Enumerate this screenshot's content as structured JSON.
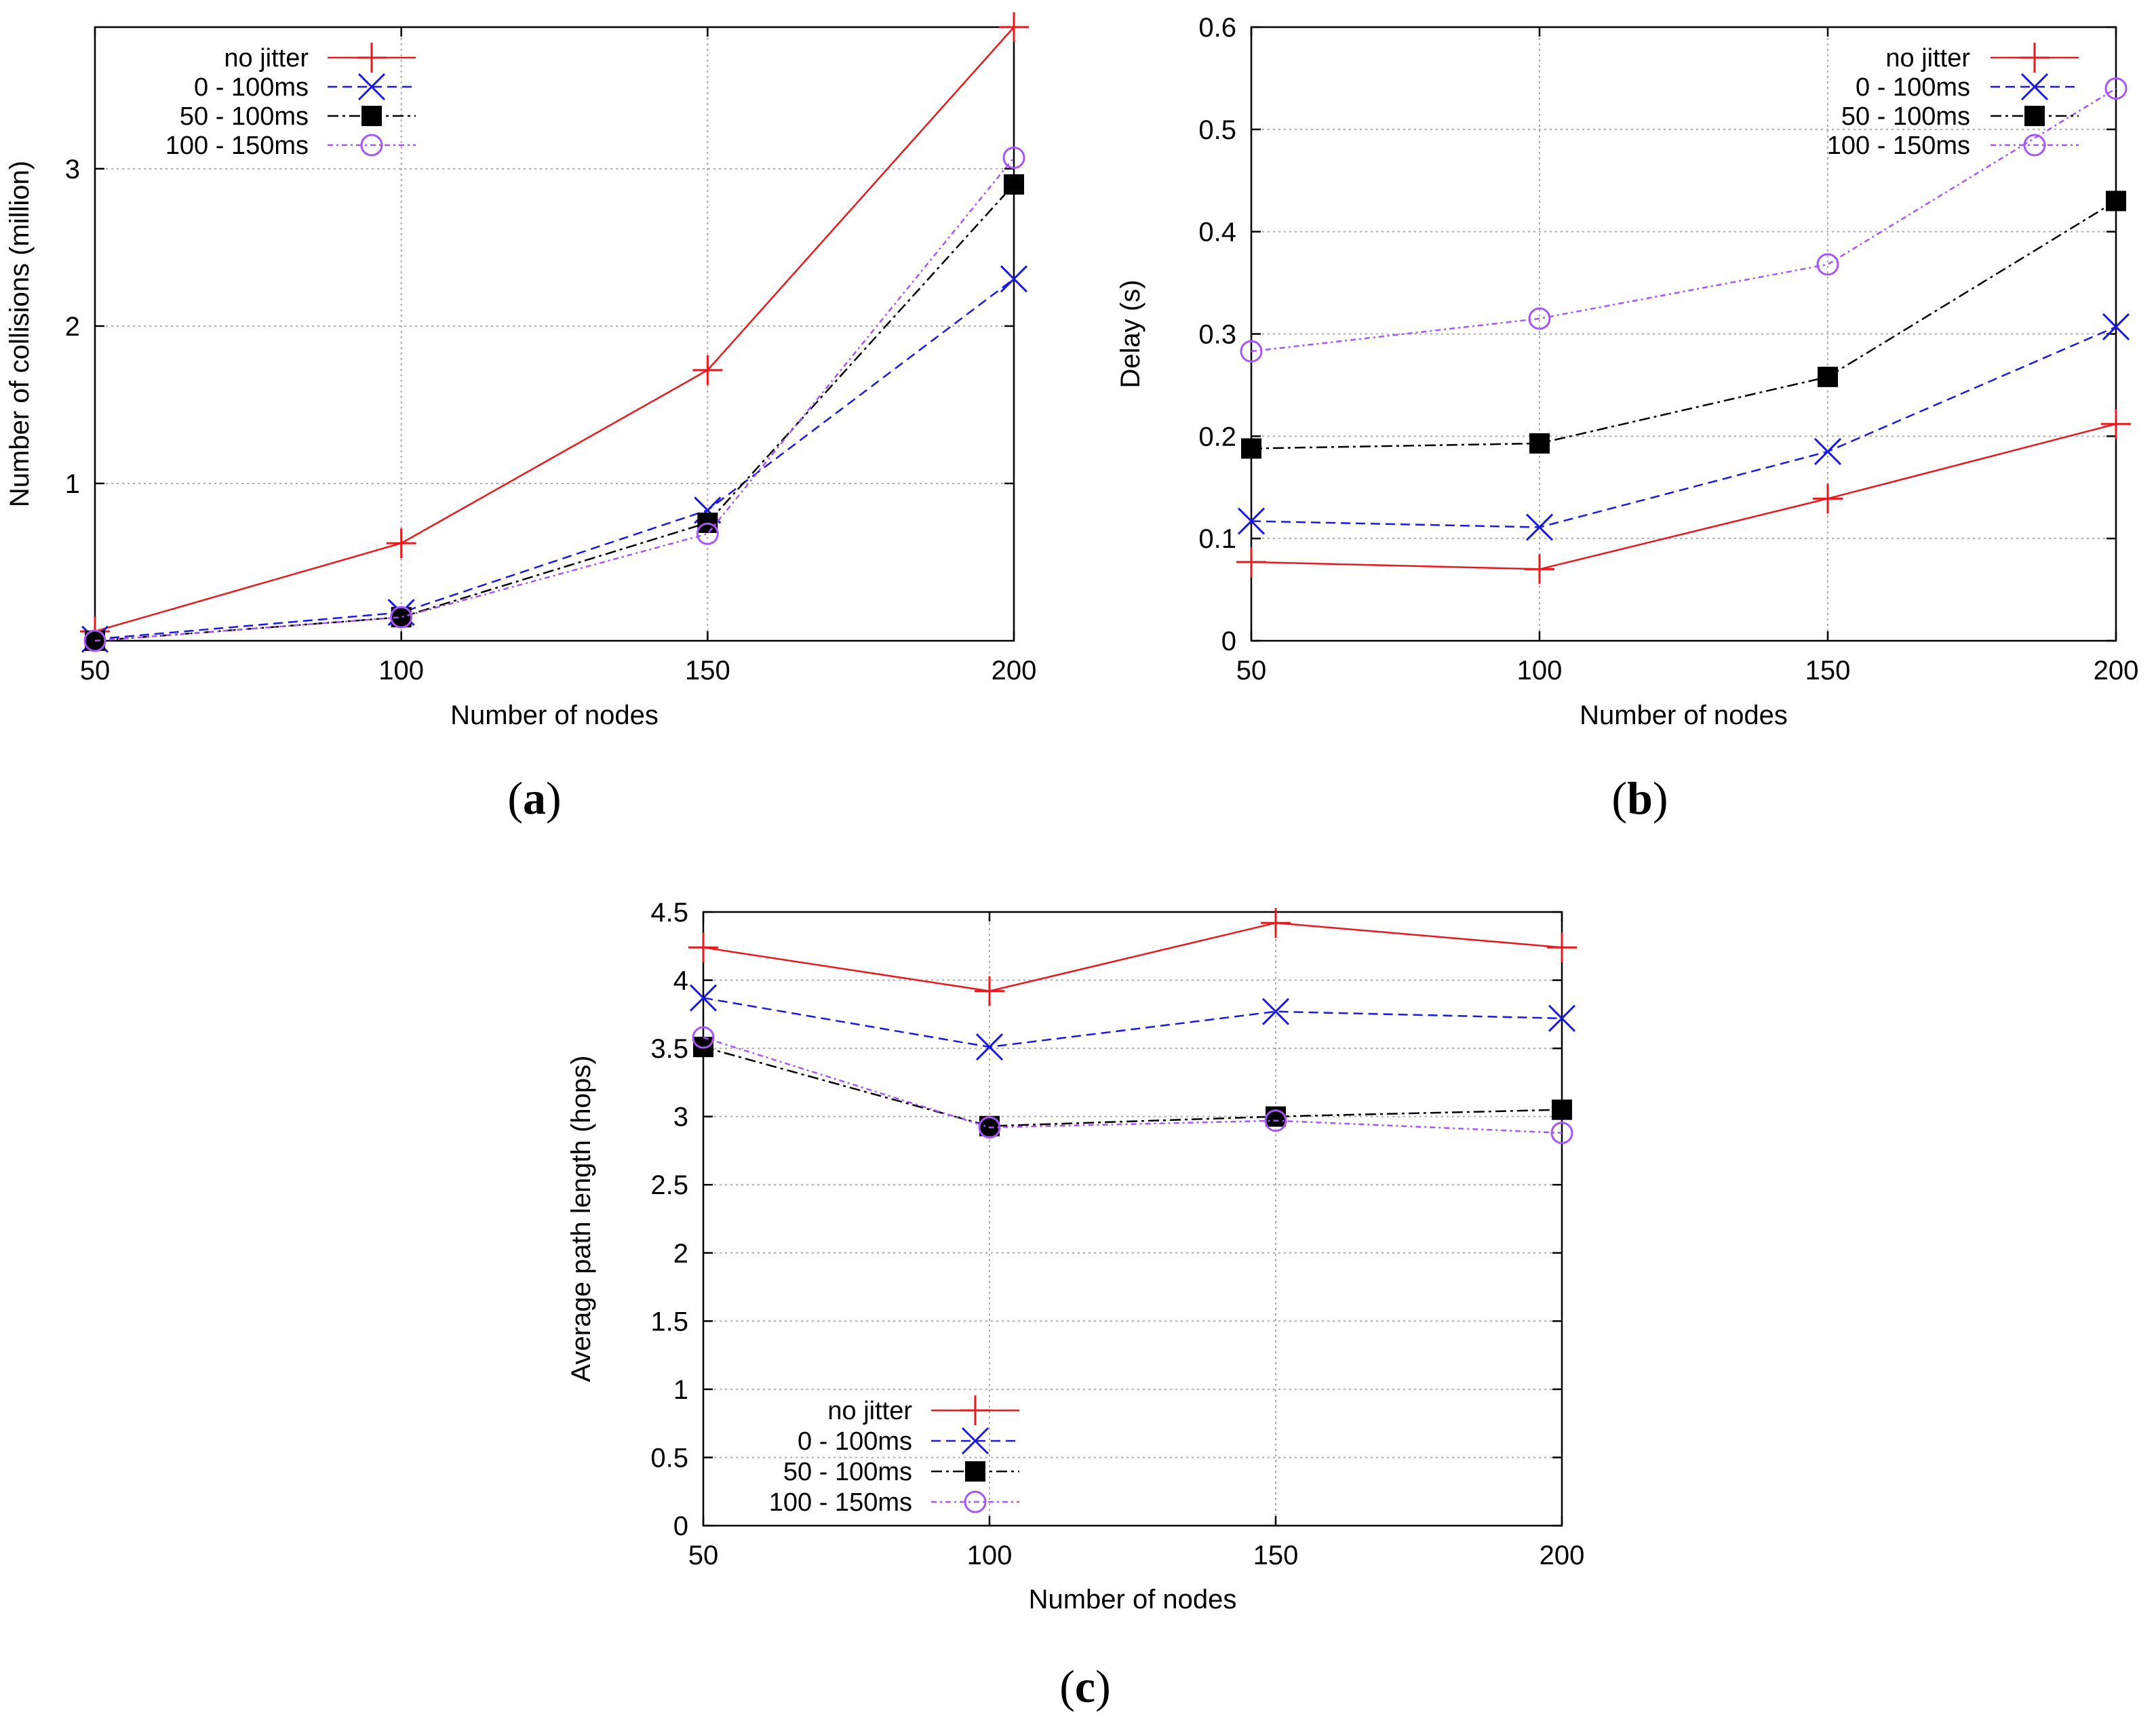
{
  "colors": {
    "no_jitter": "#e8191c",
    "0_100": "#1a1adf",
    "50_100": "#000000",
    "100_150": "#a855f7"
  },
  "chart_data": [
    {
      "id": "a",
      "type": "line",
      "caption": "(a)",
      "xlabel": "Number of nodes",
      "ylabel": "Number of collisions (million)",
      "x": [
        50,
        100,
        150,
        200
      ],
      "xlim": [
        50,
        200
      ],
      "ylim": [
        0,
        3.9
      ],
      "xticks": [
        50,
        100,
        150,
        200
      ],
      "yticks": [
        1,
        2,
        3
      ],
      "legend_position": "top-left",
      "series": [
        {
          "name": "no jitter",
          "key": "no_jitter",
          "values": [
            0.06,
            0.62,
            1.72,
            3.9
          ]
        },
        {
          "name": "0 - 100ms",
          "key": "0_100",
          "values": [
            0.01,
            0.18,
            0.83,
            2.3
          ]
        },
        {
          "name": "50 - 100ms",
          "key": "50_100",
          "values": [
            0.0,
            0.15,
            0.75,
            2.9
          ]
        },
        {
          "name": "100 - 150ms",
          "key": "100_150",
          "values": [
            0.0,
            0.15,
            0.68,
            3.07
          ]
        }
      ]
    },
    {
      "id": "b",
      "type": "line",
      "caption": "(b)",
      "xlabel": "Number of nodes",
      "ylabel": "Delay (s)",
      "x": [
        50,
        100,
        150,
        200
      ],
      "xlim": [
        50,
        200
      ],
      "ylim": [
        0,
        0.6
      ],
      "xticks": [
        50,
        100,
        150,
        200
      ],
      "yticks": [
        0,
        0.1,
        0.2,
        0.3,
        0.4,
        0.5,
        0.6
      ],
      "legend_position": "top-right",
      "series": [
        {
          "name": "no jitter",
          "key": "no_jitter",
          "values": [
            0.077,
            0.07,
            0.139,
            0.212
          ]
        },
        {
          "name": "0 - 100ms",
          "key": "0_100",
          "values": [
            0.117,
            0.111,
            0.185,
            0.307
          ]
        },
        {
          "name": "50 - 100ms",
          "key": "50_100",
          "values": [
            0.188,
            0.193,
            0.258,
            0.43
          ]
        },
        {
          "name": "100 - 150ms",
          "key": "100_150",
          "values": [
            0.283,
            0.315,
            0.368,
            0.54
          ]
        }
      ]
    },
    {
      "id": "c",
      "type": "line",
      "caption": "(c)",
      "xlabel": "Number of nodes",
      "ylabel": "Average path length (hops)",
      "x": [
        50,
        100,
        150,
        200
      ],
      "xlim": [
        50,
        200
      ],
      "ylim": [
        0,
        4.5
      ],
      "xticks": [
        50,
        100,
        150,
        200
      ],
      "yticks": [
        0,
        0.5,
        1,
        1.5,
        2,
        2.5,
        3,
        3.5,
        4,
        4.5
      ],
      "legend_position": "bottom-left",
      "series": [
        {
          "name": "no jitter",
          "key": "no_jitter",
          "values": [
            4.24,
            3.92,
            4.42,
            4.24
          ]
        },
        {
          "name": "0 - 100ms",
          "key": "0_100",
          "values": [
            3.87,
            3.51,
            3.77,
            3.72
          ]
        },
        {
          "name": "50 - 100ms",
          "key": "50_100",
          "values": [
            3.51,
            2.93,
            3.0,
            3.05
          ]
        },
        {
          "name": "100 - 150ms",
          "key": "100_150",
          "values": [
            3.58,
            2.92,
            2.97,
            2.88
          ]
        }
      ]
    }
  ]
}
